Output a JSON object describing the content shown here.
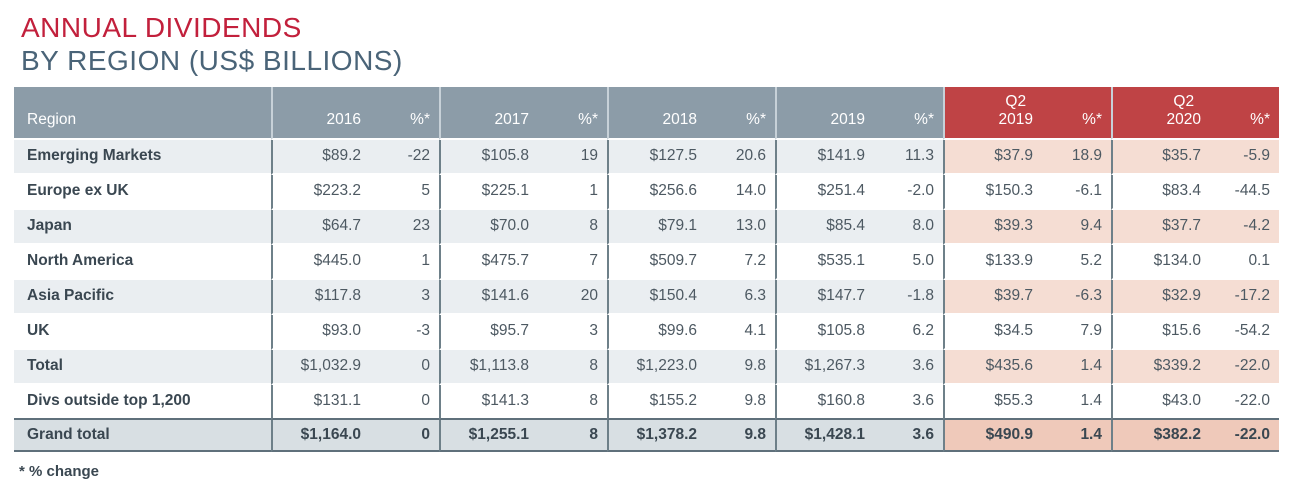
{
  "title": {
    "line1": "ANNUAL DIVIDENDS",
    "line2": "BY REGION (US$ BILLIONS)"
  },
  "footnote": "* % change",
  "colors": {
    "title_red": "#C2203C",
    "subtitle_slate": "#4A6478",
    "header_gray": "#8C9CA8",
    "header_red": "#BF4345",
    "row_stripe": "#EAEEF1",
    "row_stripe_red": "#F5DDD3",
    "grand_gray": "#D8DFE3",
    "grand_red": "#EFC9BA",
    "divider_dark": "#6E8089",
    "divider_light": "#C7D1D8",
    "grand_border": "#5F707B",
    "dark_text": "#3A4751",
    "num_text": "#4D5962"
  },
  "table": {
    "region_header": "Region",
    "pct_header": "%*",
    "year_groups": [
      {
        "id": "2016",
        "label_lines": [
          "2016"
        ],
        "red": false
      },
      {
        "id": "2017",
        "label_lines": [
          "2017"
        ],
        "red": false
      },
      {
        "id": "2018",
        "label_lines": [
          "2018"
        ],
        "red": false
      },
      {
        "id": "2019",
        "label_lines": [
          "2019"
        ],
        "red": false
      },
      {
        "id": "q2-2019",
        "label_lines": [
          "Q2",
          "2019"
        ],
        "red": true
      },
      {
        "id": "q2-2020",
        "label_lines": [
          "Q2",
          "2020"
        ],
        "red": true
      }
    ],
    "rows": [
      {
        "region": "Emerging Markets",
        "striped": true,
        "grand": false,
        "cells": [
          "$89.2",
          "-22",
          "$105.8",
          "19",
          "$127.5",
          "20.6",
          "$141.9",
          "11.3",
          "$37.9",
          "18.9",
          "$35.7",
          "-5.9"
        ]
      },
      {
        "region": "Europe ex UK",
        "striped": false,
        "grand": false,
        "cells": [
          "$223.2",
          "5",
          "$225.1",
          "1",
          "$256.6",
          "14.0",
          "$251.4",
          "-2.0",
          "$150.3",
          "-6.1",
          "$83.4",
          "-44.5"
        ]
      },
      {
        "region": "Japan",
        "striped": true,
        "grand": false,
        "cells": [
          "$64.7",
          "23",
          "$70.0",
          "8",
          "$79.1",
          "13.0",
          "$85.4",
          "8.0",
          "$39.3",
          "9.4",
          "$37.7",
          "-4.2"
        ]
      },
      {
        "region": "North America",
        "striped": false,
        "grand": false,
        "cells": [
          "$445.0",
          "1",
          "$475.7",
          "7",
          "$509.7",
          "7.2",
          "$535.1",
          "5.0",
          "$133.9",
          "5.2",
          "$134.0",
          "0.1"
        ]
      },
      {
        "region": "Asia Pacific",
        "striped": true,
        "grand": false,
        "cells": [
          "$117.8",
          "3",
          "$141.6",
          "20",
          "$150.4",
          "6.3",
          "$147.7",
          "-1.8",
          "$39.7",
          "-6.3",
          "$32.9",
          "-17.2"
        ]
      },
      {
        "region": "UK",
        "striped": false,
        "grand": false,
        "cells": [
          "$93.0",
          "-3",
          "$95.7",
          "3",
          "$99.6",
          "4.1",
          "$105.8",
          "6.2",
          "$34.5",
          "7.9",
          "$15.6",
          "-54.2"
        ]
      },
      {
        "region": "Total",
        "striped": true,
        "grand": false,
        "cells": [
          "$1,032.9",
          "0",
          "$1,113.8",
          "8",
          "$1,223.0",
          "9.8",
          "$1,267.3",
          "3.6",
          "$435.6",
          "1.4",
          "$339.2",
          "-22.0"
        ]
      },
      {
        "region": "Divs outside top 1,200",
        "striped": false,
        "grand": false,
        "cells": [
          "$131.1",
          "0",
          "$141.3",
          "8",
          "$155.2",
          "9.8",
          "$160.8",
          "3.6",
          "$55.3",
          "1.4",
          "$43.0",
          "-22.0"
        ]
      },
      {
        "region": "Grand total",
        "striped": false,
        "grand": true,
        "cells": [
          "$1,164.0",
          "0",
          "$1,255.1",
          "8",
          "$1,378.2",
          "9.8",
          "$1,428.1",
          "3.6",
          "$490.9",
          "1.4",
          "$382.2",
          "-22.0"
        ]
      }
    ]
  }
}
